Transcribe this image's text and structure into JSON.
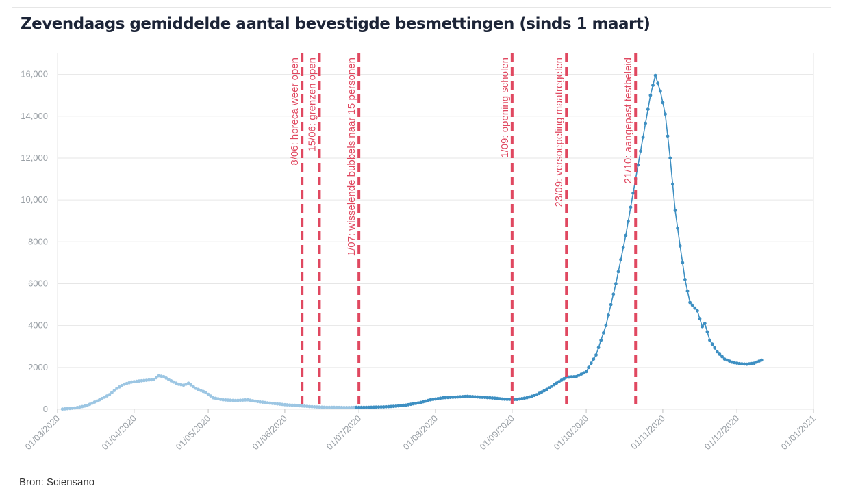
{
  "title": "Zevendaags gemiddelde aantal bevestigde besmettingen (sinds 1 maart)",
  "source": "Bron: Sciensano",
  "colors": {
    "light_series": "#9cc6e3",
    "dark_series": "#3d8fc2",
    "annotation": "#e04860",
    "grid": "#e6e6e6",
    "tick": "#9aa0a6"
  },
  "chart_data": {
    "type": "line",
    "title": "Zevendaags gemiddelde aantal bevestigde besmettingen (sinds 1 maart)",
    "xlabel": "",
    "ylabel": "",
    "xlim": [
      "2020-03-01",
      "2021-01-01"
    ],
    "ylim": [
      0,
      17000
    ],
    "grid": true,
    "x_ticks": [
      "01/03/2020",
      "01/04/2020",
      "01/05/2020",
      "01/06/2020",
      "01/07/2020",
      "01/08/2020",
      "01/09/2020",
      "01/10/2020",
      "01/11/2020",
      "01/12/2020",
      "01/01/2021"
    ],
    "x_tick_dates": [
      "2020-03-01",
      "2020-04-01",
      "2020-05-01",
      "2020-06-01",
      "2020-07-01",
      "2020-08-01",
      "2020-09-01",
      "2020-10-01",
      "2020-11-01",
      "2020-12-01",
      "2021-01-01"
    ],
    "y_ticks": [
      {
        "value": 0,
        "label": "0"
      },
      {
        "value": 2000,
        "label": "2000"
      },
      {
        "value": 4000,
        "label": "4000"
      },
      {
        "value": 6000,
        "label": "6000"
      },
      {
        "value": 8000,
        "label": "8000"
      },
      {
        "value": 10000,
        "label": "10,000"
      },
      {
        "value": 12000,
        "label": "12,000"
      },
      {
        "value": 14000,
        "label": "14,000"
      },
      {
        "value": 16000,
        "label": "16,000"
      }
    ],
    "series": [
      {
        "style": "light",
        "points": [
          [
            "2020-03-03",
            10
          ],
          [
            "2020-03-08",
            60
          ],
          [
            "2020-03-13",
            180
          ],
          [
            "2020-03-18",
            450
          ],
          [
            "2020-03-22",
            700
          ],
          [
            "2020-03-25",
            1000
          ],
          [
            "2020-03-28",
            1200
          ],
          [
            "2020-03-31",
            1300
          ],
          [
            "2020-04-03",
            1350
          ],
          [
            "2020-04-07",
            1400
          ],
          [
            "2020-04-09",
            1420
          ],
          [
            "2020-04-11",
            1600
          ],
          [
            "2020-04-13",
            1560
          ],
          [
            "2020-04-15",
            1420
          ],
          [
            "2020-04-17",
            1300
          ],
          [
            "2020-04-19",
            1200
          ],
          [
            "2020-04-21",
            1150
          ],
          [
            "2020-04-23",
            1250
          ],
          [
            "2020-04-26",
            1000
          ],
          [
            "2020-04-30",
            800
          ],
          [
            "2020-05-03",
            550
          ],
          [
            "2020-05-07",
            450
          ],
          [
            "2020-05-12",
            420
          ],
          [
            "2020-05-17",
            450
          ],
          [
            "2020-05-22",
            350
          ],
          [
            "2020-05-27",
            280
          ],
          [
            "2020-06-01",
            220
          ],
          [
            "2020-06-06",
            180
          ],
          [
            "2020-06-11",
            130
          ],
          [
            "2020-06-16",
            100
          ],
          [
            "2020-06-21",
            90
          ],
          [
            "2020-06-26",
            85
          ],
          [
            "2020-06-30",
            90
          ]
        ]
      },
      {
        "style": "dark",
        "points": [
          [
            "2020-06-30",
            90
          ],
          [
            "2020-07-05",
            95
          ],
          [
            "2020-07-10",
            110
          ],
          [
            "2020-07-15",
            140
          ],
          [
            "2020-07-20",
            200
          ],
          [
            "2020-07-25",
            300
          ],
          [
            "2020-07-30",
            450
          ],
          [
            "2020-08-04",
            550
          ],
          [
            "2020-08-09",
            580
          ],
          [
            "2020-08-14",
            620
          ],
          [
            "2020-08-19",
            580
          ],
          [
            "2020-08-24",
            540
          ],
          [
            "2020-08-29",
            480
          ],
          [
            "2020-09-03",
            470
          ],
          [
            "2020-09-07",
            550
          ],
          [
            "2020-09-11",
            700
          ],
          [
            "2020-09-15",
            950
          ],
          [
            "2020-09-19",
            1250
          ],
          [
            "2020-09-23",
            1530
          ],
          [
            "2020-09-27",
            1560
          ],
          [
            "2020-10-01",
            1800
          ],
          [
            "2020-10-05",
            2600
          ],
          [
            "2020-10-09",
            4000
          ],
          [
            "2020-10-13",
            6000
          ],
          [
            "2020-10-17",
            8300
          ],
          [
            "2020-10-21",
            11000
          ],
          [
            "2020-10-24",
            13000
          ],
          [
            "2020-10-27",
            15000
          ],
          [
            "2020-10-29",
            15950
          ],
          [
            "2020-10-31",
            15200
          ],
          [
            "2020-11-02",
            14100
          ],
          [
            "2020-11-04",
            12000
          ],
          [
            "2020-11-06",
            9500
          ],
          [
            "2020-11-08",
            7800
          ],
          [
            "2020-11-10",
            6200
          ],
          [
            "2020-11-12",
            5100
          ],
          [
            "2020-11-15",
            4700
          ],
          [
            "2020-11-17",
            3950
          ],
          [
            "2020-11-18",
            4100
          ],
          [
            "2020-11-20",
            3300
          ],
          [
            "2020-11-23",
            2750
          ],
          [
            "2020-11-26",
            2400
          ],
          [
            "2020-11-29",
            2250
          ],
          [
            "2020-12-02",
            2180
          ],
          [
            "2020-12-05",
            2150
          ],
          [
            "2020-12-08",
            2200
          ],
          [
            "2020-12-11",
            2350
          ]
        ]
      }
    ],
    "annotations": [
      {
        "date": "2020-06-08",
        "label": "8/06: horeca weer open"
      },
      {
        "date": "2020-06-15",
        "label": "15/06: grenzen open"
      },
      {
        "date": "2020-07-01",
        "label": "1/07: wisselende bubbels naar 15 personen"
      },
      {
        "date": "2020-09-01",
        "label": "1/09: opening scholen"
      },
      {
        "date": "2020-09-23",
        "label": "23/09: versoepeling maatregelen"
      },
      {
        "date": "2020-10-21",
        "label": "21/10: aangepast testbeleid"
      }
    ]
  }
}
